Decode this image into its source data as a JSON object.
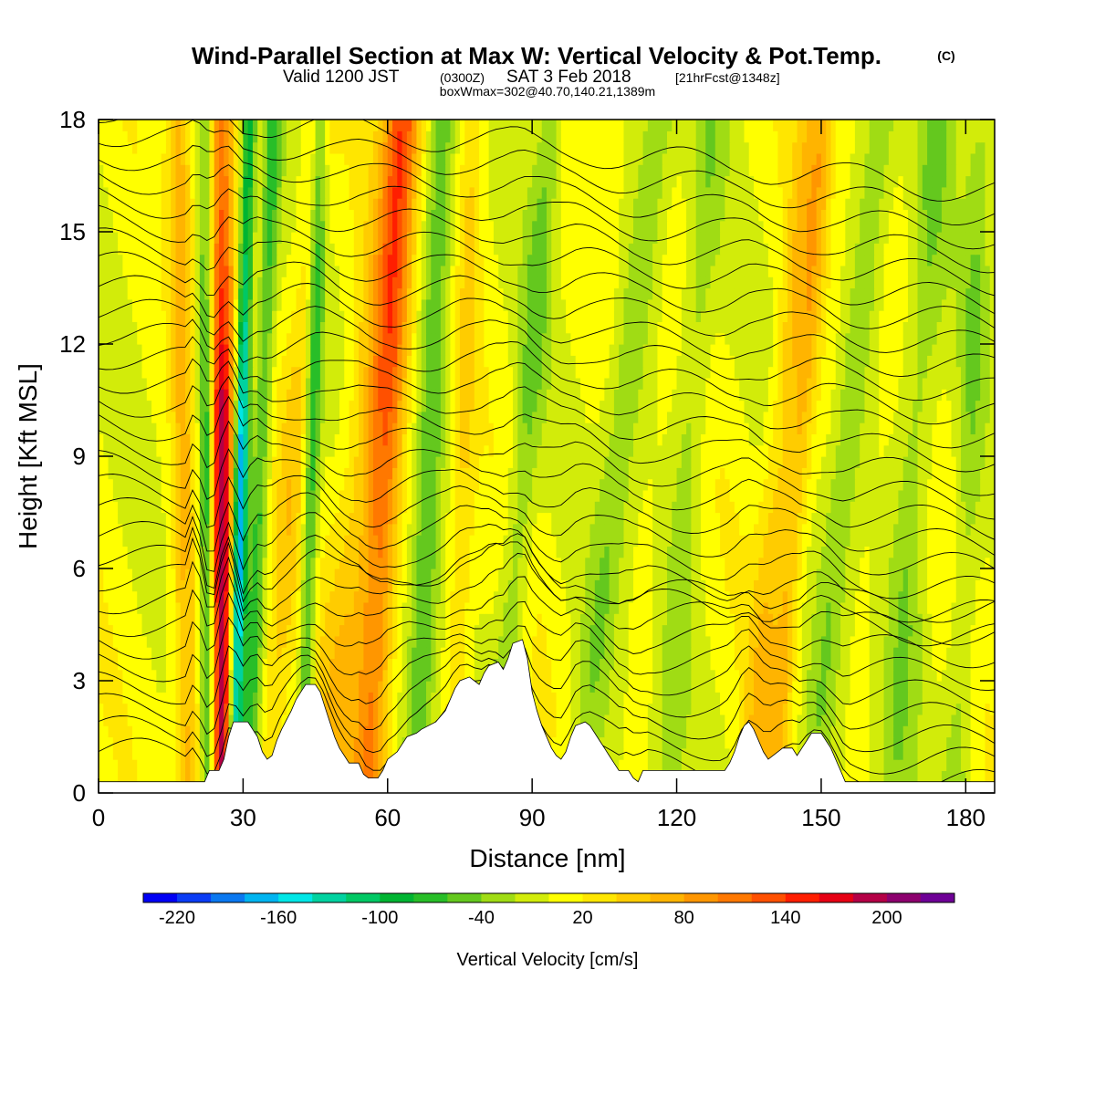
{
  "header": {
    "title": "Wind-Parallel Section at Max W: Vertical Velocity & Pot.Temp.",
    "copyright": "(C)",
    "valid_prefix": "Valid 1200 JST",
    "valid_zulu": "(0300Z)",
    "valid_date": "SAT 3 Feb 2018",
    "forecast": "[21hrFcst@1348z]",
    "box_info": "boxWmax=302@40.70,140.21,1389m"
  },
  "chart_data": {
    "type": "heatmap",
    "xlabel": "Distance [nm]",
    "ylabel": "Height [Kft MSL]",
    "xlim": [
      0,
      186
    ],
    "ylim": [
      0,
      18
    ],
    "x_ticks": [
      0,
      30,
      60,
      90,
      120,
      150,
      180
    ],
    "y_ticks": [
      0,
      3,
      6,
      9,
      12,
      15,
      18
    ],
    "terrain": [
      [
        0,
        0.3
      ],
      [
        22,
        0.3
      ],
      [
        23,
        0.6
      ],
      [
        25,
        0.6
      ],
      [
        26,
        0.9
      ],
      [
        27,
        1.5
      ],
      [
        28,
        1.9
      ],
      [
        31,
        1.9
      ],
      [
        33,
        1.5
      ],
      [
        34,
        1.1
      ],
      [
        35,
        0.9
      ],
      [
        36,
        1.0
      ],
      [
        37,
        1.4
      ],
      [
        38,
        1.7
      ],
      [
        40,
        2.2
      ],
      [
        41,
        2.5
      ],
      [
        42,
        2.7
      ],
      [
        43,
        2.9
      ],
      [
        45,
        2.9
      ],
      [
        46,
        2.7
      ],
      [
        47,
        2.3
      ],
      [
        48,
        1.9
      ],
      [
        49,
        1.5
      ],
      [
        50,
        1.2
      ],
      [
        51,
        1.0
      ],
      [
        52,
        0.8
      ],
      [
        54,
        0.8
      ],
      [
        55,
        0.5
      ],
      [
        56,
        0.4
      ],
      [
        58,
        0.4
      ],
      [
        59,
        0.6
      ],
      [
        60,
        0.9
      ],
      [
        62,
        1.1
      ],
      [
        63,
        1.3
      ],
      [
        64,
        1.5
      ],
      [
        66,
        1.6
      ],
      [
        67,
        1.7
      ],
      [
        70,
        1.9
      ],
      [
        72,
        2.2
      ],
      [
        73,
        2.5
      ],
      [
        74,
        2.8
      ],
      [
        75,
        3.0
      ],
      [
        77,
        3.1
      ],
      [
        78,
        3.0
      ],
      [
        79,
        2.9
      ],
      [
        80,
        3.2
      ],
      [
        81,
        3.4
      ],
      [
        83,
        3.5
      ],
      [
        84,
        3.3
      ],
      [
        85,
        3.6
      ],
      [
        86,
        4.0
      ],
      [
        88,
        4.1
      ],
      [
        89,
        3.6
      ],
      [
        90,
        2.7
      ],
      [
        91,
        2.2
      ],
      [
        92,
        1.8
      ],
      [
        93,
        1.5
      ],
      [
        94,
        1.2
      ],
      [
        95,
        1.0
      ],
      [
        96,
        0.9
      ],
      [
        97,
        1.1
      ],
      [
        98,
        1.5
      ],
      [
        99,
        1.8
      ],
      [
        101,
        1.9
      ],
      [
        102,
        1.8
      ],
      [
        103,
        1.6
      ],
      [
        104,
        1.4
      ],
      [
        105,
        1.2
      ],
      [
        106,
        1.0
      ],
      [
        107,
        0.8
      ],
      [
        108,
        0.6
      ],
      [
        110,
        0.6
      ],
      [
        111,
        0.4
      ],
      [
        112,
        0.3
      ],
      [
        113,
        0.6
      ],
      [
        114,
        0.6
      ],
      [
        130,
        0.6
      ],
      [
        131,
        0.8
      ],
      [
        132,
        1.1
      ],
      [
        133,
        1.5
      ],
      [
        134,
        1.8
      ],
      [
        135,
        1.9
      ],
      [
        136,
        1.7
      ],
      [
        137,
        1.4
      ],
      [
        138,
        1.1
      ],
      [
        139,
        0.9
      ],
      [
        141,
        1.1
      ],
      [
        142,
        1.2
      ],
      [
        144,
        1.2
      ],
      [
        145,
        1.0
      ],
      [
        146,
        1.2
      ],
      [
        147,
        1.4
      ],
      [
        148,
        1.6
      ],
      [
        150,
        1.6
      ],
      [
        151,
        1.4
      ],
      [
        152,
        1.2
      ],
      [
        153,
        0.9
      ],
      [
        154,
        0.6
      ],
      [
        155,
        0.3
      ],
      [
        186,
        0.3
      ]
    ],
    "colorbar": {
      "title": "Vertical Velocity [cm/s]",
      "tick_labels": [
        "-220",
        "-160",
        "-100",
        "-40",
        "20",
        "80",
        "140",
        "200"
      ],
      "colors": [
        "#0000f5",
        "#0a3cf5",
        "#0a78f0",
        "#00b4f0",
        "#00e6e6",
        "#00d2a0",
        "#00c864",
        "#00b432",
        "#28be28",
        "#64c81e",
        "#a0dc14",
        "#d2ec0a",
        "#ffff00",
        "#ffe600",
        "#ffcc00",
        "#ffb400",
        "#ff9600",
        "#ff7800",
        "#ff5000",
        "#ff1e00",
        "#e60014",
        "#b40046",
        "#8c006e",
        "#6e0096"
      ]
    },
    "features": [
      {
        "x": 23.0,
        "tilt": -0.05,
        "w": 1.6,
        "w_cm_s": -120
      },
      {
        "x": 25.5,
        "tilt": 0.0,
        "w": 2.6,
        "w_cm_s": 200
      },
      {
        "x": 28.0,
        "tilt": 0.18,
        "w": 1.5,
        "w_cm_s": -190
      },
      {
        "x": 18.5,
        "tilt": -0.1,
        "w": 2.4,
        "w_cm_s": 60
      },
      {
        "x": 31.0,
        "tilt": 0.3,
        "w": 1.8,
        "w_cm_s": -70
      },
      {
        "x": 35.0,
        "tilt": 0.6,
        "w": 3.0,
        "w_cm_s": 40
      },
      {
        "x": 42.5,
        "tilt": 0.2,
        "w": 1.6,
        "w_cm_s": -80
      },
      {
        "x": 48.0,
        "tilt": 0.8,
        "w": 5.0,
        "w_cm_s": 50
      },
      {
        "x": 56.0,
        "tilt": 0.4,
        "w": 3.5,
        "w_cm_s": 90
      },
      {
        "x": 66.0,
        "tilt": 0.3,
        "w": 3.0,
        "w_cm_s": -60
      },
      {
        "x": 74.0,
        "tilt": 0.2,
        "w": 2.5,
        "w_cm_s": 35
      },
      {
        "x": 83.0,
        "tilt": 0.6,
        "w": 3.0,
        "w_cm_s": -45
      },
      {
        "x": 100.0,
        "tilt": 0.9,
        "w": 4.0,
        "w_cm_s": -40
      },
      {
        "x": 118.0,
        "tilt": 0.5,
        "w": 3.5,
        "w_cm_s": -35
      },
      {
        "x": 135.0,
        "tilt": 0.7,
        "w": 3.0,
        "w_cm_s": 45
      },
      {
        "x": 140.0,
        "tilt": 0.6,
        "w": 2.5,
        "w_cm_s": 55
      },
      {
        "x": 148.0,
        "tilt": 0.8,
        "w": 3.5,
        "w_cm_s": -40
      },
      {
        "x": 165.0,
        "tilt": 0.5,
        "w": 4.0,
        "w_cm_s": -40
      },
      {
        "x": 178.0,
        "tilt": 0.3,
        "w": 3.0,
        "w_cm_s": -35
      }
    ]
  }
}
